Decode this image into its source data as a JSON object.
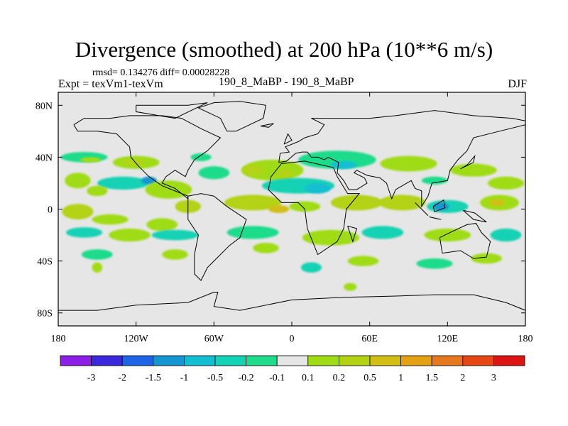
{
  "title": "Divergence (smoothed) at 200 hPa (10**6 m/s)",
  "stats": "rmsd= 0.134276 diff= 0.00028228",
  "expt": "Expt = texVm1-texVm",
  "period": "190_8_MaBP - 190_8_MaBP",
  "season": "DJF",
  "chart_data": {
    "type": "contour-map",
    "variable": "Divergence difference at 200 hPa",
    "units": "10**6 m/s",
    "x_range": [
      -180,
      180
    ],
    "y_range": [
      -90,
      90
    ],
    "x_ticks": [
      {
        "value": -180,
        "label": "180"
      },
      {
        "value": -120,
        "label": "120W"
      },
      {
        "value": -60,
        "label": "60W"
      },
      {
        "value": 0,
        "label": "0"
      },
      {
        "value": 60,
        "label": "60E"
      },
      {
        "value": 120,
        "label": "120E"
      },
      {
        "value": 180,
        "label": "180"
      }
    ],
    "y_ticks": [
      {
        "value": 80,
        "label": "80N"
      },
      {
        "value": 40,
        "label": "40N"
      },
      {
        "value": 0,
        "label": "0"
      },
      {
        "value": -40,
        "label": "40S"
      },
      {
        "value": -80,
        "label": "80S"
      }
    ],
    "colorbar": {
      "colors": [
        "#8c1ee6",
        "#3c28dc",
        "#1e64e6",
        "#1496d2",
        "#14bed2",
        "#14d2b4",
        "#1edc8c",
        "#e6e6e6",
        "#a0dc14",
        "#b4d214",
        "#d2be14",
        "#e6a014",
        "#e6781e",
        "#e64614",
        "#dc1414"
      ],
      "labels": [
        "-3",
        "-2",
        "-1.5",
        "-1",
        "-0.5",
        "-0.2",
        "-0.1",
        "0.1",
        "0.2",
        "0.5",
        "1",
        "1.5",
        "2",
        "3"
      ]
    },
    "field": [
      {
        "lon": -160,
        "lat": 40,
        "rx": 18,
        "ry": 4,
        "c": 6
      },
      {
        "lon": -155,
        "lat": 38,
        "rx": 8,
        "ry": 2,
        "c": 8
      },
      {
        "lon": -120,
        "lat": 36,
        "rx": 18,
        "ry": 5,
        "c": 8
      },
      {
        "lon": -122,
        "lat": 36,
        "rx": 8,
        "ry": 2.5,
        "c": 9
      },
      {
        "lon": -165,
        "lat": 22,
        "rx": 10,
        "ry": 6,
        "c": 8
      },
      {
        "lon": -130,
        "lat": 20,
        "rx": 20,
        "ry": 5,
        "c": 5
      },
      {
        "lon": -110,
        "lat": 22,
        "rx": 6,
        "ry": 3,
        "c": 3
      },
      {
        "lon": -150,
        "lat": 14,
        "rx": 8,
        "ry": 4,
        "c": 8
      },
      {
        "lon": -95,
        "lat": 15,
        "rx": 18,
        "ry": 7,
        "c": 8
      },
      {
        "lon": -60,
        "lat": 28,
        "rx": 12,
        "ry": 5,
        "c": 6
      },
      {
        "lon": -70,
        "lat": 40,
        "rx": 8,
        "ry": 3,
        "c": 6
      },
      {
        "lon": -15,
        "lat": 30,
        "rx": 24,
        "ry": 8,
        "c": 8
      },
      {
        "lon": -30,
        "lat": 30,
        "rx": 8,
        "ry": 4,
        "c": 9
      },
      {
        "lon": -5,
        "lat": 27,
        "rx": 6,
        "ry": 4,
        "c": 9
      },
      {
        "lon": 35,
        "lat": 38,
        "rx": 30,
        "ry": 7,
        "c": 6
      },
      {
        "lon": 40,
        "lat": 34,
        "rx": 10,
        "ry": 3,
        "c": 4
      },
      {
        "lon": 5,
        "lat": 18,
        "rx": 28,
        "ry": 6,
        "c": 5
      },
      {
        "lon": 20,
        "lat": 16,
        "rx": 10,
        "ry": 4,
        "c": 4
      },
      {
        "lon": 90,
        "lat": 35,
        "rx": 22,
        "ry": 6,
        "c": 8
      },
      {
        "lon": 140,
        "lat": 30,
        "rx": 18,
        "ry": 5,
        "c": 8
      },
      {
        "lon": 165,
        "lat": 20,
        "rx": 14,
        "ry": 5,
        "c": 8
      },
      {
        "lon": 110,
        "lat": 22,
        "rx": 10,
        "ry": 3,
        "c": 6
      },
      {
        "lon": -165,
        "lat": -2,
        "rx": 12,
        "ry": 6,
        "c": 9
      },
      {
        "lon": -140,
        "lat": -8,
        "rx": 14,
        "ry": 4,
        "c": 8
      },
      {
        "lon": -100,
        "lat": -12,
        "rx": 12,
        "ry": 5,
        "c": 8
      },
      {
        "lon": -80,
        "lat": 2,
        "rx": 10,
        "ry": 5,
        "c": 9
      },
      {
        "lon": -30,
        "lat": 5,
        "rx": 22,
        "ry": 6,
        "c": 9
      },
      {
        "lon": -10,
        "lat": 0,
        "rx": 8,
        "ry": 3,
        "c": 10
      },
      {
        "lon": 10,
        "lat": 2,
        "rx": 12,
        "ry": 4,
        "c": 8
      },
      {
        "lon": 50,
        "lat": 5,
        "rx": 20,
        "ry": 6,
        "c": 9
      },
      {
        "lon": 85,
        "lat": 5,
        "rx": 18,
        "ry": 6,
        "c": 9
      },
      {
        "lon": 120,
        "lat": 2,
        "rx": 16,
        "ry": 5,
        "c": 5
      },
      {
        "lon": 115,
        "lat": 2,
        "rx": 6,
        "ry": 3,
        "c": 3
      },
      {
        "lon": 160,
        "lat": 5,
        "rx": 15,
        "ry": 6,
        "c": 8
      },
      {
        "lon": 158,
        "lat": 5,
        "rx": 6,
        "ry": 2.5,
        "c": 10
      },
      {
        "lon": -160,
        "lat": -18,
        "rx": 14,
        "ry": 4,
        "c": 5
      },
      {
        "lon": -125,
        "lat": -20,
        "rx": 16,
        "ry": 5,
        "c": 8
      },
      {
        "lon": -90,
        "lat": -20,
        "rx": 18,
        "ry": 4,
        "c": 5
      },
      {
        "lon": -30,
        "lat": -18,
        "rx": 20,
        "ry": 5,
        "c": 6
      },
      {
        "lon": 30,
        "lat": -22,
        "rx": 22,
        "ry": 6,
        "c": 8
      },
      {
        "lon": 70,
        "lat": -18,
        "rx": 16,
        "ry": 5,
        "c": 5
      },
      {
        "lon": 120,
        "lat": -20,
        "rx": 18,
        "ry": 5,
        "c": 8
      },
      {
        "lon": 165,
        "lat": -20,
        "rx": 12,
        "ry": 5,
        "c": 5
      },
      {
        "lon": -150,
        "lat": -35,
        "rx": 12,
        "ry": 4,
        "c": 6
      },
      {
        "lon": -90,
        "lat": -35,
        "rx": 10,
        "ry": 4,
        "c": 8
      },
      {
        "lon": -20,
        "lat": -30,
        "rx": 10,
        "ry": 4,
        "c": 8
      },
      {
        "lon": 15,
        "lat": -45,
        "rx": 8,
        "ry": 4,
        "c": 5
      },
      {
        "lon": 55,
        "lat": -40,
        "rx": 12,
        "ry": 4,
        "c": 8
      },
      {
        "lon": 110,
        "lat": -42,
        "rx": 14,
        "ry": 4,
        "c": 6
      },
      {
        "lon": 150,
        "lat": -38,
        "rx": 12,
        "ry": 4,
        "c": 8
      },
      {
        "lon": -150,
        "lat": -45,
        "rx": 4,
        "ry": 4,
        "c": 8
      },
      {
        "lon": 45,
        "lat": -60,
        "rx": 5,
        "ry": 3,
        "c": 8
      }
    ],
    "coastlines": [
      [
        [
          -168,
          65
        ],
        [
          -160,
          70
        ],
        [
          -140,
          70
        ],
        [
          -125,
          72
        ],
        [
          -100,
          72
        ],
        [
          -85,
          70
        ],
        [
          -70,
          62
        ],
        [
          -55,
          55
        ],
        [
          -65,
          45
        ],
        [
          -75,
          38
        ],
        [
          -80,
          30
        ],
        [
          -82,
          25
        ],
        [
          -90,
          30
        ],
        [
          -97,
          25
        ],
        [
          -100,
          20
        ],
        [
          -90,
          16
        ],
        [
          -80,
          8
        ],
        [
          -80,
          10
        ],
        [
          -100,
          18
        ],
        [
          -110,
          25
        ],
        [
          -118,
          33
        ],
        [
          -124,
          40
        ],
        [
          -125,
          48
        ],
        [
          -135,
          58
        ],
        [
          -150,
          60
        ],
        [
          -165,
          60
        ],
        [
          -168,
          65
        ]
      ],
      [
        [
          -80,
          10
        ],
        [
          -70,
          12
        ],
        [
          -60,
          10
        ],
        [
          -50,
          2
        ],
        [
          -35,
          -8
        ],
        [
          -40,
          -22
        ],
        [
          -48,
          -28
        ],
        [
          -58,
          -38
        ],
        [
          -65,
          -45
        ],
        [
          -70,
          -55
        ],
        [
          -75,
          -50
        ],
        [
          -75,
          -35
        ],
        [
          -72,
          -20
        ],
        [
          -80,
          -8
        ],
        [
          -80,
          0
        ],
        [
          -80,
          10
        ]
      ],
      [
        [
          -18,
          15
        ],
        [
          -16,
          25
        ],
        [
          -8,
          35
        ],
        [
          10,
          37
        ],
        [
          32,
          32
        ],
        [
          35,
          25
        ],
        [
          43,
          12
        ],
        [
          52,
          12
        ],
        [
          42,
          0
        ],
        [
          40,
          -15
        ],
        [
          35,
          -25
        ],
        [
          20,
          -35
        ],
        [
          18,
          -30
        ],
        [
          12,
          -15
        ],
        [
          10,
          0
        ],
        [
          5,
          5
        ],
        [
          -8,
          5
        ],
        [
          -18,
          15
        ]
      ],
      [
        [
          -10,
          36
        ],
        [
          -9,
          43
        ],
        [
          -2,
          44
        ],
        [
          -5,
          48
        ],
        [
          5,
          52
        ],
        [
          10,
          55
        ],
        [
          20,
          58
        ],
        [
          25,
          65
        ],
        [
          15,
          70
        ],
        [
          30,
          70
        ],
        [
          60,
          70
        ],
        [
          80,
          72
        ],
        [
          110,
          76
        ],
        [
          140,
          72
        ],
        [
          170,
          70
        ],
        [
          180,
          68
        ]
      ],
      [
        [
          180,
          65
        ],
        [
          160,
          60
        ],
        [
          140,
          55
        ],
        [
          135,
          45
        ],
        [
          128,
          38
        ],
        [
          122,
          30
        ],
        [
          120,
          22
        ],
        [
          108,
          20
        ],
        [
          105,
          10
        ],
        [
          100,
          2
        ],
        [
          100,
          14
        ],
        [
          95,
          16
        ],
        [
          92,
          22
        ],
        [
          80,
          15
        ],
        [
          77,
          8
        ],
        [
          73,
          20
        ],
        [
          68,
          24
        ],
        [
          58,
          26
        ],
        [
          50,
          30
        ],
        [
          48,
          28
        ],
        [
          56,
          24
        ],
        [
          58,
          20
        ],
        [
          50,
          15
        ],
        [
          44,
          15
        ],
        [
          40,
          22
        ],
        [
          35,
          28
        ],
        [
          36,
          36
        ],
        [
          28,
          40
        ],
        [
          25,
          38
        ],
        [
          20,
          40
        ],
        [
          15,
          40
        ],
        [
          12,
          44
        ],
        [
          8,
          44
        ],
        [
          3,
          43
        ],
        [
          -4,
          37
        ],
        [
          -10,
          36
        ]
      ],
      [
        [
          114,
          -22
        ],
        [
          122,
          -18
        ],
        [
          135,
          -12
        ],
        [
          142,
          -11
        ],
        [
          146,
          -18
        ],
        [
          153,
          -25
        ],
        [
          150,
          -37
        ],
        [
          140,
          -38
        ],
        [
          130,
          -32
        ],
        [
          116,
          -34
        ],
        [
          114,
          -22
        ]
      ],
      [
        [
          -50,
          60
        ],
        [
          -43,
          60
        ],
        [
          -22,
          70
        ],
        [
          -20,
          80
        ],
        [
          -40,
          83
        ],
        [
          -60,
          82
        ],
        [
          -72,
          78
        ],
        [
          -55,
          70
        ],
        [
          -50,
          60
        ]
      ],
      [
        [
          -180,
          -78
        ],
        [
          -150,
          -78
        ],
        [
          -120,
          -74
        ],
        [
          -80,
          -72
        ],
        [
          -60,
          -64
        ],
        [
          -57,
          -64
        ],
        [
          -60,
          -75
        ],
        [
          -40,
          -78
        ],
        [
          0,
          -70
        ],
        [
          40,
          -68
        ],
        [
          80,
          -67
        ],
        [
          110,
          -66
        ],
        [
          140,
          -66
        ],
        [
          165,
          -72
        ],
        [
          180,
          -78
        ]
      ],
      [
        [
          -6,
          50
        ],
        [
          -3,
          58
        ],
        [
          0,
          53
        ],
        [
          -6,
          50
        ]
      ],
      [
        [
          130,
          31
        ],
        [
          135,
          34
        ],
        [
          141,
          41
        ],
        [
          140,
          36
        ],
        [
          130,
          31
        ]
      ],
      [
        [
          -24,
          64
        ],
        [
          -14,
          66
        ],
        [
          -18,
          63
        ],
        [
          -24,
          64
        ]
      ],
      [
        [
          95,
          5
        ],
        [
          105,
          -5
        ],
        [
          100,
          0
        ],
        [
          95,
          5
        ]
      ],
      [
        [
          110,
          -7
        ],
        [
          115,
          -8
        ],
        [
          106,
          -6
        ],
        [
          110,
          -7
        ]
      ],
      [
        [
          109,
          2
        ],
        [
          117,
          7
        ],
        [
          118,
          1
        ],
        [
          110,
          -2
        ],
        [
          109,
          2
        ]
      ],
      [
        [
          132,
          -1
        ],
        [
          141,
          -3
        ],
        [
          150,
          -10
        ],
        [
          140,
          -8
        ],
        [
          132,
          -1
        ]
      ],
      [
        [
          43,
          -13
        ],
        [
          50,
          -15
        ],
        [
          47,
          -25
        ],
        [
          43,
          -13
        ]
      ],
      [
        [
          -120,
          80
        ],
        [
          -80,
          80
        ],
        [
          -65,
          82
        ],
        [
          -90,
          70
        ],
        [
          -120,
          75
        ],
        [
          -120,
          80
        ]
      ]
    ]
  }
}
